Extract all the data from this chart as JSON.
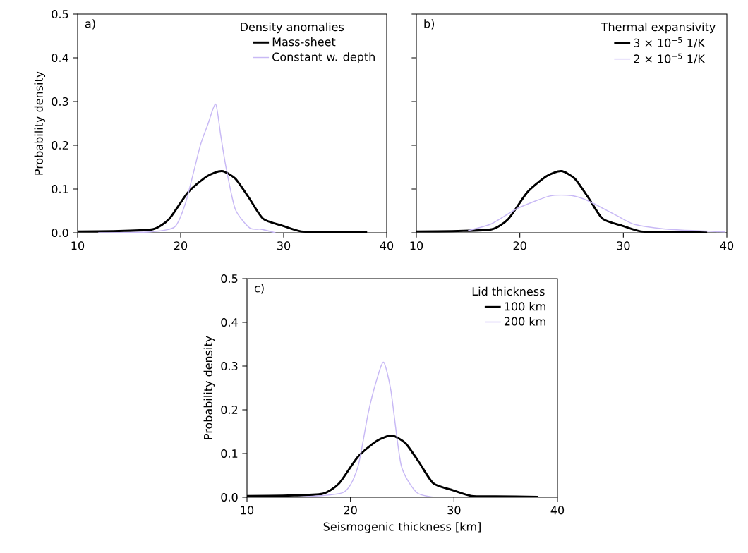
{
  "chart_data": [
    {
      "type": "line",
      "ylabel": "Probability density",
      "legend_title": "Density anomalies",
      "legend": "top right",
      "annotations": [
        "a)"
      ],
      "xlim": [
        10,
        40
      ],
      "ylim": [
        0,
        0.5
      ],
      "xticks": [
        10,
        20,
        30,
        40
      ],
      "yticks": [
        {
          "value": 0,
          "label": "0.0"
        },
        0.1,
        0.2,
        0.3,
        0.4,
        0.5
      ],
      "series": [
        {
          "name": "Mass-sheet",
          "color": "#000000",
          "x": [
            10,
            14,
            17.3,
            18.9,
            20.7,
            22.55,
            24.0,
            25.3,
            26.6,
            28.0,
            29.9,
            31.7,
            34,
            38.1
          ],
          "values": [
            0.003,
            0.004,
            0.008,
            0.032,
            0.092,
            0.129,
            0.141,
            0.124,
            0.081,
            0.032,
            0.016,
            0.003,
            0.002,
            0.001
          ]
        },
        {
          "name": "Constant w. depth",
          "color": "#c8b9f5",
          "x": [
            12,
            17,
            19.4,
            20.5,
            21.9,
            22.6,
            23.4,
            23.9,
            24.4,
            25.3,
            26.7,
            27.8,
            29.2
          ],
          "values": [
            0.0,
            0.002,
            0.013,
            0.07,
            0.199,
            0.245,
            0.294,
            0.221,
            0.15,
            0.054,
            0.011,
            0.008,
            0.0
          ]
        }
      ]
    },
    {
      "type": "line",
      "legend_title": "Thermal expansivity",
      "legend": "top right",
      "annotations": [
        "b)"
      ],
      "tick_labels": "x",
      "xlim": [
        10,
        40
      ],
      "ylim": [
        0,
        0.5
      ],
      "xticks": [
        10,
        20,
        30,
        40
      ],
      "yticks": [
        0,
        0.1,
        0.2,
        0.3,
        0.4,
        0.5
      ],
      "series": [
        {
          "name": "3 × 10$^{−5}$ 1/K",
          "color": "#000000",
          "x": [
            10,
            14,
            17.3,
            18.9,
            20.7,
            22.55,
            24.0,
            25.3,
            26.6,
            28.0,
            29.9,
            31.7,
            34,
            38.1
          ],
          "values": [
            0.003,
            0.004,
            0.008,
            0.032,
            0.092,
            0.129,
            0.141,
            0.124,
            0.081,
            0.032,
            0.016,
            0.003,
            0.002,
            0.001
          ]
        },
        {
          "name": "2 × 10$^{−5}$ 1/K",
          "color": "#c8b9f5",
          "x": [
            15.0,
            17.3,
            19.8,
            22.9,
            25.0,
            26.6,
            29.3,
            31.1,
            34.3,
            39.8
          ],
          "values": [
            0.005,
            0.021,
            0.056,
            0.084,
            0.085,
            0.073,
            0.04,
            0.019,
            0.008,
            0.002
          ]
        }
      ]
    },
    {
      "type": "line",
      "xlabel": "Seismogenic thickness [km]",
      "ylabel": "Probability density",
      "legend_title": "Lid thickness",
      "legend": "top right",
      "annotations": [
        "c)"
      ],
      "xlim": [
        10,
        40
      ],
      "ylim": [
        0,
        0.5
      ],
      "xticks": [
        10,
        20,
        30,
        40
      ],
      "yticks": [
        {
          "value": 0,
          "label": "0.0"
        },
        0.1,
        0.2,
        0.3,
        0.4,
        0.5
      ],
      "series": [
        {
          "name": "100 km",
          "color": "#000000",
          "x": [
            10,
            14,
            17.3,
            18.9,
            20.7,
            22.55,
            24.0,
            25.3,
            26.6,
            28.0,
            29.9,
            31.7,
            34,
            38.1
          ],
          "values": [
            0.003,
            0.004,
            0.008,
            0.032,
            0.092,
            0.129,
            0.141,
            0.124,
            0.081,
            0.032,
            0.016,
            0.003,
            0.002,
            0.001
          ]
        },
        {
          "name": "200 km",
          "color": "#c8b9f5",
          "x": [
            14.5,
            19.3,
            20.7,
            21.7,
            22.5,
            23.2,
            23.9,
            24.9,
            26.4,
            28.2
          ],
          "values": [
            0.0,
            0.011,
            0.068,
            0.191,
            0.266,
            0.309,
            0.245,
            0.073,
            0.011,
            0.0
          ]
        }
      ]
    }
  ]
}
